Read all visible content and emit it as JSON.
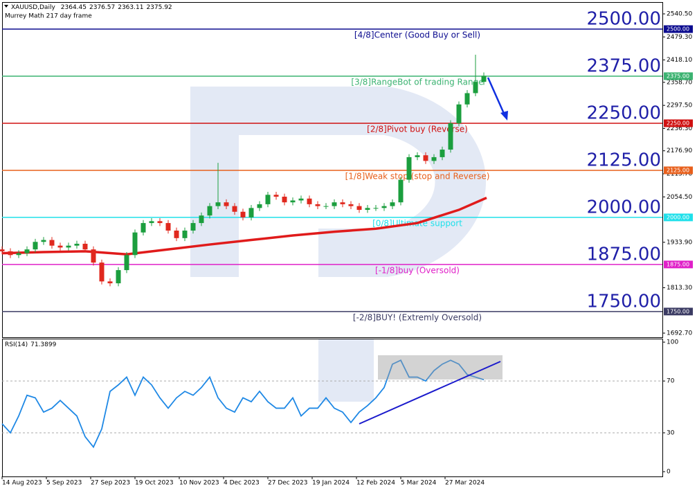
{
  "chart_data": {
    "type": "candlestick",
    "symbol": "XAUUSD,Daily",
    "ohlc": [
      2364.45,
      2376.57,
      2363.11,
      2375.92
    ],
    "indicator": "Murrey Math 217 day frame",
    "up_color": "#1b9e3e",
    "down_color": "#e0281e",
    "xlim": [
      0,
      238.5
    ],
    "xticks": [
      {
        "value": 0,
        "label": "14 Aug 2023"
      },
      {
        "value": 16,
        "label": "5 Sep 2023"
      },
      {
        "value": 32,
        "label": "27 Sep 2023"
      },
      {
        "value": 48,
        "label": "19 Oct 2023"
      },
      {
        "value": 64,
        "label": "10 Nov 2023"
      },
      {
        "value": 80,
        "label": "4 Dec 2023"
      },
      {
        "value": 96,
        "label": "27 Dec 2023"
      },
      {
        "value": 112,
        "label": "19 Jan 2024"
      },
      {
        "value": 128,
        "label": "12 Feb 2024"
      },
      {
        "value": 144,
        "label": "5 Mar 2024"
      },
      {
        "value": 160,
        "label": "27 Mar 2024"
      }
    ],
    "ylim": [
      1681.7,
      2571.8
    ],
    "yticks": [
      {
        "value": 2540.5,
        "label": "2540.50"
      },
      {
        "value": 2479.3,
        "label": "2479.30"
      },
      {
        "value": 2418.1,
        "label": "2418.10"
      },
      {
        "value": 2358.7,
        "label": "2358.70"
      },
      {
        "value": 2297.5,
        "label": "2297.50"
      },
      {
        "value": 2236.3,
        "label": "2236.30"
      },
      {
        "value": 2176.9,
        "label": "2176.90"
      },
      {
        "value": 2115.7,
        "label": "2115.70"
      },
      {
        "value": 2054.5,
        "label": "2054.50"
      },
      {
        "value": 1933.9,
        "label": "1933.90"
      },
      {
        "value": 1813.3,
        "label": "1813.30"
      },
      {
        "value": 1692.7,
        "label": "1692.70"
      }
    ],
    "x": [
      0,
      3,
      6,
      9,
      12,
      15,
      18,
      21,
      24,
      27,
      30,
      33,
      36,
      39,
      42,
      45,
      48,
      51,
      54,
      57,
      60,
      63,
      66,
      69,
      72,
      75,
      78,
      81,
      84,
      87,
      90,
      93,
      96,
      99,
      102,
      105,
      108,
      111,
      114,
      117,
      120,
      123,
      126,
      129,
      132,
      135,
      138,
      141,
      144,
      147,
      150,
      153,
      156,
      159,
      162,
      165,
      168,
      171,
      174
    ],
    "open": [
      1915,
      1910,
      1900,
      1905,
      1915,
      1935,
      1940,
      1925,
      1920,
      1925,
      1930,
      1915,
      1880,
      1830,
      1825,
      1860,
      1900,
      1960,
      1985,
      1990,
      1985,
      1965,
      1945,
      1965,
      1985,
      2005,
      2030,
      2040,
      2030,
      2015,
      2000,
      2025,
      2035,
      2060,
      2055,
      2040,
      2045,
      2050,
      2035,
      2030,
      2030,
      2040,
      2035,
      2030,
      2020,
      2025,
      2025,
      2030,
      2040,
      2100,
      2160,
      2165,
      2150,
      2160,
      2180,
      2250,
      2300,
      2330,
      2360
    ],
    "high": [
      1923,
      1918,
      1913,
      1923,
      1943,
      1948,
      1948,
      1933,
      1933,
      1938,
      1938,
      1923,
      1888,
      1838,
      1868,
      1908,
      1968,
      1993,
      1998,
      1998,
      1993,
      1973,
      1973,
      1993,
      2013,
      2038,
      2145,
      2048,
      2038,
      2023,
      2033,
      2043,
      2068,
      2068,
      2063,
      2053,
      2058,
      2058,
      2043,
      2038,
      2048,
      2048,
      2043,
      2038,
      2033,
      2033,
      2038,
      2048,
      2108,
      2168,
      2173,
      2173,
      2168,
      2188,
      2258,
      2308,
      2338,
      2432,
      2385
    ],
    "low": [
      1902,
      1892,
      1892,
      1897,
      1907,
      1927,
      1917,
      1912,
      1912,
      1917,
      1907,
      1872,
      1822,
      1817,
      1817,
      1852,
      1892,
      1952,
      1977,
      1977,
      1957,
      1937,
      1937,
      1957,
      1977,
      1997,
      2022,
      2022,
      2007,
      1992,
      1992,
      2017,
      2027,
      2047,
      2032,
      2032,
      2037,
      2027,
      2022,
      2022,
      2022,
      2027,
      2022,
      2012,
      2012,
      2017,
      2017,
      2022,
      2032,
      2092,
      2152,
      2142,
      2142,
      2152,
      2172,
      2242,
      2292,
      2322,
      2352
    ],
    "close": [
      1910,
      1900,
      1905,
      1915,
      1935,
      1940,
      1925,
      1920,
      1925,
      1930,
      1915,
      1880,
      1830,
      1825,
      1860,
      1900,
      1960,
      1985,
      1990,
      1985,
      1965,
      1945,
      1965,
      1985,
      2005,
      2030,
      2040,
      2030,
      2015,
      2000,
      2025,
      2035,
      2060,
      2055,
      2040,
      2045,
      2050,
      2035,
      2030,
      2030,
      2040,
      2035,
      2030,
      2020,
      2025,
      2025,
      2030,
      2040,
      2100,
      2160,
      2165,
      2150,
      2160,
      2180,
      2250,
      2300,
      2330,
      2360,
      2376
    ],
    "moving_average": {
      "color": "#e01b1b",
      "x": [
        0,
        15,
        30,
        45,
        60,
        75,
        90,
        105,
        120,
        135,
        150,
        165,
        175
      ],
      "values": [
        1905,
        1908,
        1910,
        1902,
        1915,
        1928,
        1940,
        1952,
        1962,
        1970,
        1985,
        2020,
        2052
      ]
    },
    "levels": [
      {
        "value": 2500,
        "label": "2500.00",
        "description": "[4/8]Center (Good Buy or Sell)",
        "color": "#0b0b8f"
      },
      {
        "value": 2375,
        "label": "2375.00",
        "description": "[3/8]RangeBot of trading Range",
        "color": "#3cb371"
      },
      {
        "value": 2250,
        "label": "2250.00",
        "description": "[2/8]Pivot buy (Reverse)",
        "color": "#d01010"
      },
      {
        "value": 2125,
        "label": "2125.00",
        "description": "[1/8]Weak stop (stop and Reverse)",
        "color": "#e8601c"
      },
      {
        "value": 2000,
        "label": "2000.00",
        "description": "[0/8]Ultimate support",
        "color": "#1fe0ea"
      },
      {
        "value": 1875,
        "label": "1875.00",
        "description": "[-1/8]buy (Oversold)",
        "color": "#e020c8"
      },
      {
        "value": 1750,
        "label": "1750.00",
        "description": "[-2/8]BUY! (Extremly Oversold)",
        "color": "#3b3b63"
      }
    ],
    "level_label_color": "#1f1fa8",
    "rsi": {
      "title": "RSI(14)",
      "last": 71.3899,
      "color": "#1e88e5",
      "ylim": [
        -3.7,
        102.7
      ],
      "yticks": [
        100,
        70,
        30,
        0
      ],
      "values": [
        37,
        30,
        43,
        59,
        57,
        46,
        49,
        55,
        49,
        43,
        27,
        19,
        33,
        62,
        67,
        73,
        59,
        73,
        67,
        57,
        49,
        57,
        62,
        59,
        65,
        73,
        57,
        49,
        46,
        57,
        54,
        62,
        54,
        49,
        49,
        57,
        43,
        49,
        49,
        57,
        49,
        46,
        38,
        46,
        51,
        57,
        65,
        83,
        86,
        73,
        73,
        70,
        78,
        83,
        86,
        83,
        75,
        73,
        71
      ]
    }
  }
}
